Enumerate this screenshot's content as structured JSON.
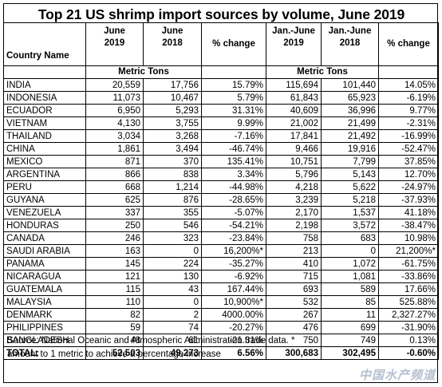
{
  "title": "Top 21 US shrimp import sources by volume, June 2019",
  "headers": {
    "country": "Country Name",
    "june_2019": [
      "June",
      "2019"
    ],
    "june_2018": [
      "June",
      "2018"
    ],
    "pct1": "% change",
    "jj_2019": [
      "Jan.-June",
      "2019"
    ],
    "jj_2018": [
      "Jan.-June",
      "2018"
    ],
    "pct2": "% change",
    "unit1": "Metric Tons",
    "unit2": "Metric Tons"
  },
  "rows": [
    [
      "INDIA",
      "20,559",
      "17,756",
      "15.79%",
      "115,694",
      "101,440",
      "14.05%"
    ],
    [
      "INDONESIA",
      "11,073",
      "10,467",
      "5.79%",
      "61,843",
      "65,923",
      "-6.19%"
    ],
    [
      "ECUADOR",
      "6,950",
      "5,293",
      "31.31%",
      "40,609",
      "36,996",
      "9.77%"
    ],
    [
      "VIETNAM",
      "4,130",
      "3,755",
      "9.99%",
      "21,002",
      "21,499",
      "-2.31%"
    ],
    [
      "THAILAND",
      "3,034",
      "3,268",
      "-7.16%",
      "17,841",
      "21,492",
      "-16.99%"
    ],
    [
      "CHINA",
      "1,861",
      "3,494",
      "-46.74%",
      "9,466",
      "19,916",
      "-52.47%"
    ],
    [
      "MEXICO",
      "871",
      "370",
      "135.41%",
      "10,751",
      "7,799",
      "37.85%"
    ],
    [
      "ARGENTINA",
      "866",
      "838",
      "3.34%",
      "5,796",
      "5,143",
      "12.70%"
    ],
    [
      "PERU",
      "668",
      "1,214",
      "-44.98%",
      "4,218",
      "5,622",
      "-24.97%"
    ],
    [
      "GUYANA",
      "625",
      "876",
      "-28.65%",
      "3,239",
      "5,218",
      "-37.93%"
    ],
    [
      "VENEZUELA",
      "337",
      "355",
      "-5.07%",
      "2,170",
      "1,537",
      "41.18%"
    ],
    [
      "HONDURAS",
      "250",
      "546",
      "-54.21%",
      "2,198",
      "3,572",
      "-38.47%"
    ],
    [
      "CANADA",
      "246",
      "323",
      "-23.84%",
      "758",
      "683",
      "10.98%"
    ],
    [
      "SAUDI ARABIA",
      "163",
      "0",
      "16,200%*",
      "213",
      "0",
      "21,200%*"
    ],
    [
      "PANAMA",
      "145",
      "224",
      "-35.27%",
      "410",
      "1,072",
      "-61.75%"
    ],
    [
      "NICARAGUA",
      "121",
      "130",
      "-6.92%",
      "715",
      "1,081",
      "-33.86%"
    ],
    [
      "GUATEMALA",
      "115",
      "43",
      "167.44%",
      "693",
      "589",
      "17.66%"
    ],
    [
      "MALAYSIA",
      "110",
      "0",
      "10,900%*",
      "532",
      "85",
      "525.88%"
    ],
    [
      "DENMARK",
      "82",
      "2",
      "4000.00%",
      "267",
      "11",
      "2,327.27%"
    ],
    [
      "PHILIPPINES",
      "59",
      "74",
      "-20.27%",
      "476",
      "699",
      "-31.90%"
    ],
    [
      "BANGLADESH",
      "48",
      "61",
      "-21.31%",
      "750",
      "749",
      "0.13%"
    ]
  ],
  "total": [
    "TOTAL:",
    "52,503",
    "49,273",
    "6.56%",
    "300,683",
    "302,495",
    "-0.60%"
  ],
  "source_line1": "Source: National Oceanic and Atmospheric Administration trade data. *",
  "source_line2": "amount to 1 metric to achieve a percentage increase",
  "watermark": "中国水产频道"
}
